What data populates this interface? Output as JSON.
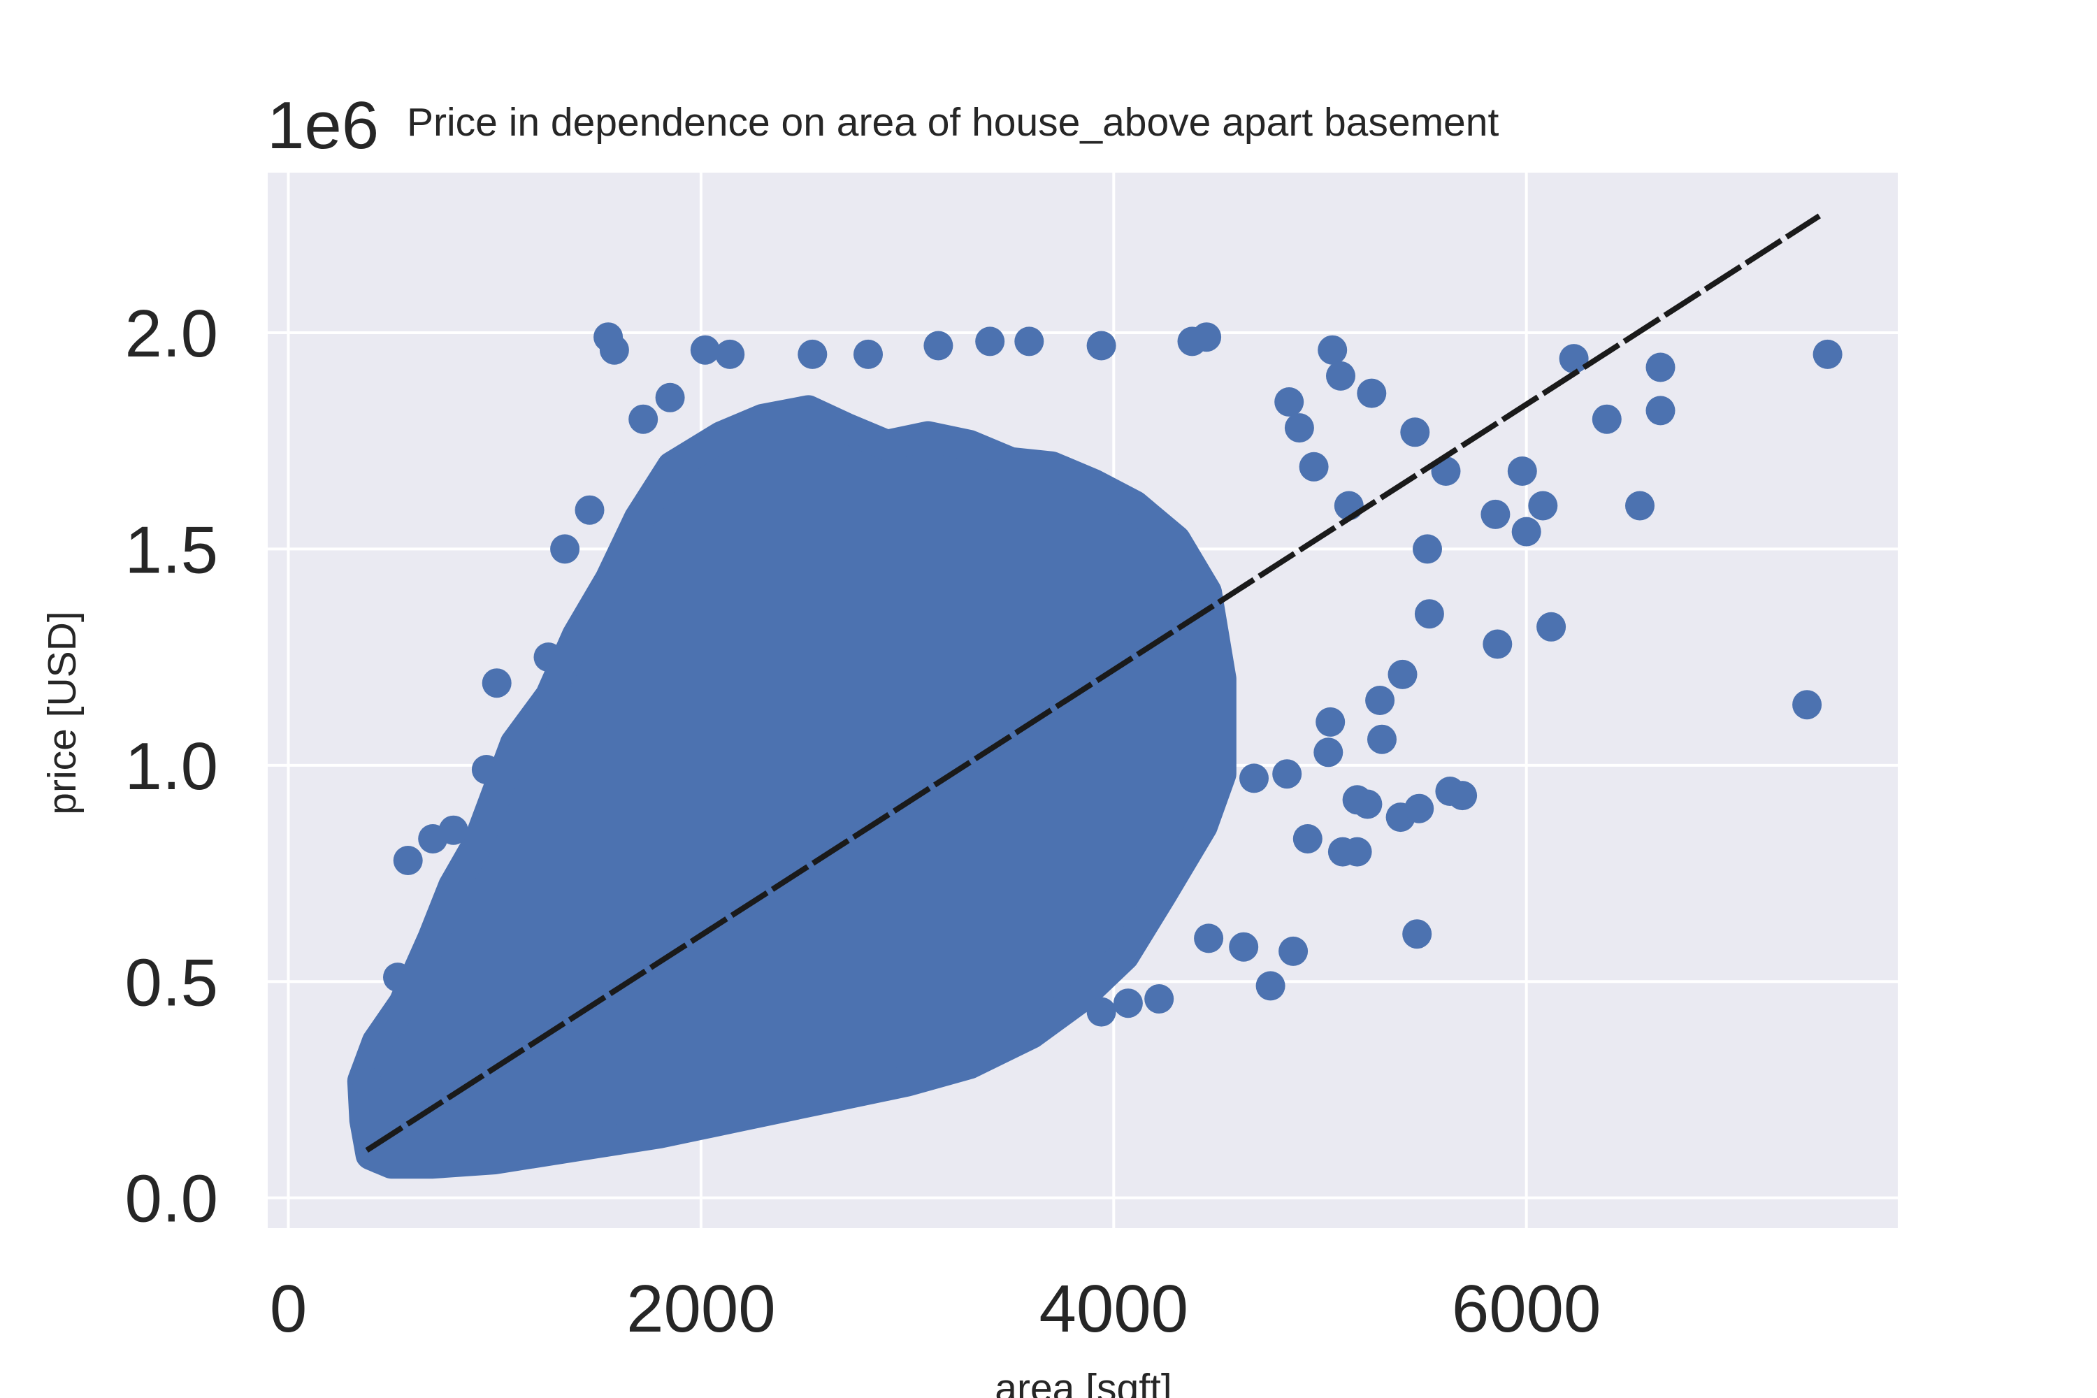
{
  "chart_data": {
    "type": "scatter",
    "title": "Price in dependence on area of house_above apart basement",
    "xlabel": "area [sqft]",
    "ylabel": "price [USD]",
    "y_offset_label": "1e6",
    "xlim": [
      -100,
      7800
    ],
    "ylim": [
      -0.07,
      2.37
    ],
    "x_ticks": [
      0,
      2000,
      4000,
      6000
    ],
    "x_tick_labels": [
      "0",
      "2000",
      "4000",
      "6000"
    ],
    "y_ticks": [
      0.0,
      0.5,
      1.0,
      1.5,
      2.0
    ],
    "y_tick_labels": [
      "0.0",
      "0.5",
      "1.0",
      "1.5",
      "2.0"
    ],
    "grid": true,
    "colors": {
      "background": "#eaeaf2",
      "grid": "#ffffff",
      "points": "#4c72b0",
      "fit_line": "#1a1a1a",
      "text": "#262626"
    },
    "series": [
      {
        "kind": "points",
        "color": "#4c72b0",
        "points": [
          [
            1550,
            1.99
          ],
          [
            1580,
            1.96
          ],
          [
            2020,
            1.96
          ],
          [
            2140,
            1.95
          ],
          [
            2540,
            1.95
          ],
          [
            2810,
            1.95
          ],
          [
            3150,
            1.97
          ],
          [
            3400,
            1.98
          ],
          [
            3590,
            1.98
          ],
          [
            3940,
            1.97
          ],
          [
            4380,
            1.98
          ],
          [
            4450,
            1.99
          ],
          [
            5060,
            1.96
          ],
          [
            5100,
            1.9
          ],
          [
            5250,
            1.86
          ],
          [
            6230,
            1.94
          ],
          [
            6650,
            1.92
          ],
          [
            7460,
            1.95
          ],
          [
            1720,
            1.8
          ],
          [
            1850,
            1.85
          ],
          [
            4850,
            1.84
          ],
          [
            4900,
            1.78
          ],
          [
            5460,
            1.77
          ],
          [
            6390,
            1.8
          ],
          [
            6650,
            1.82
          ],
          [
            4970,
            1.69
          ],
          [
            5610,
            1.68
          ],
          [
            5980,
            1.68
          ],
          [
            6080,
            1.6
          ],
          [
            6550,
            1.6
          ],
          [
            5140,
            1.6
          ],
          [
            5850,
            1.58
          ],
          [
            6000,
            1.54
          ],
          [
            5520,
            1.5
          ],
          [
            1340,
            1.5
          ],
          [
            1460,
            1.59
          ],
          [
            5860,
            1.28
          ],
          [
            6120,
            1.32
          ],
          [
            7360,
            1.14
          ],
          [
            5530,
            1.35
          ],
          [
            5400,
            1.21
          ],
          [
            5290,
            1.15
          ],
          [
            5300,
            1.06
          ],
          [
            5050,
            1.1
          ],
          [
            5040,
            1.03
          ],
          [
            5180,
            0.92
          ],
          [
            5230,
            0.91
          ],
          [
            5390,
            0.88
          ],
          [
            5480,
            0.9
          ],
          [
            5630,
            0.94
          ],
          [
            5690,
            0.93
          ],
          [
            4940,
            0.83
          ],
          [
            5110,
            0.8
          ],
          [
            5180,
            0.8
          ],
          [
            5470,
            0.61
          ],
          [
            4460,
            0.6
          ],
          [
            4630,
            0.58
          ],
          [
            4870,
            0.57
          ],
          [
            4760,
            0.49
          ],
          [
            4220,
            0.46
          ],
          [
            4070,
            0.45
          ],
          [
            3940,
            0.43
          ],
          [
            4840,
            0.98
          ],
          [
            4680,
            0.97
          ],
          [
            1010,
            1.19
          ],
          [
            1260,
            1.25
          ],
          [
            960,
            0.99
          ],
          [
            580,
            0.78
          ],
          [
            530,
            0.51
          ],
          [
            700,
            0.83
          ],
          [
            800,
            0.85
          ],
          [
            410,
            0.32
          ],
          [
            380,
            0.27
          ],
          [
            440,
            0.09
          ]
        ]
      },
      {
        "kind": "cloud",
        "color": "#4c72b0",
        "polygon": [
          [
            360,
            0.27
          ],
          [
            430,
            0.36
          ],
          [
            560,
            0.45
          ],
          [
            700,
            0.6
          ],
          [
            800,
            0.72
          ],
          [
            920,
            0.82
          ],
          [
            1100,
            1.05
          ],
          [
            1270,
            1.16
          ],
          [
            1400,
            1.3
          ],
          [
            1560,
            1.43
          ],
          [
            1700,
            1.57
          ],
          [
            1860,
            1.69
          ],
          [
            2100,
            1.76
          ],
          [
            2300,
            1.8
          ],
          [
            2520,
            1.82
          ],
          [
            2700,
            1.78
          ],
          [
            2900,
            1.74
          ],
          [
            3100,
            1.76
          ],
          [
            3300,
            1.74
          ],
          [
            3500,
            1.7
          ],
          [
            3700,
            1.69
          ],
          [
            3900,
            1.65
          ],
          [
            4100,
            1.6
          ],
          [
            4300,
            1.52
          ],
          [
            4450,
            1.4
          ],
          [
            4520,
            1.2
          ],
          [
            4520,
            0.98
          ],
          [
            4430,
            0.86
          ],
          [
            4230,
            0.7
          ],
          [
            4050,
            0.56
          ],
          [
            3830,
            0.46
          ],
          [
            3600,
            0.38
          ],
          [
            3300,
            0.31
          ],
          [
            3000,
            0.27
          ],
          [
            2600,
            0.23
          ],
          [
            2200,
            0.19
          ],
          [
            1800,
            0.15
          ],
          [
            1400,
            0.12
          ],
          [
            1000,
            0.09
          ],
          [
            700,
            0.08
          ],
          [
            500,
            0.08
          ],
          [
            400,
            0.1
          ],
          [
            370,
            0.18
          ]
        ]
      },
      {
        "kind": "line",
        "style": "dashed",
        "color": "#1a1a1a",
        "x": [
          380,
          7420
        ],
        "y": [
          0.11,
          2.27
        ]
      }
    ]
  }
}
